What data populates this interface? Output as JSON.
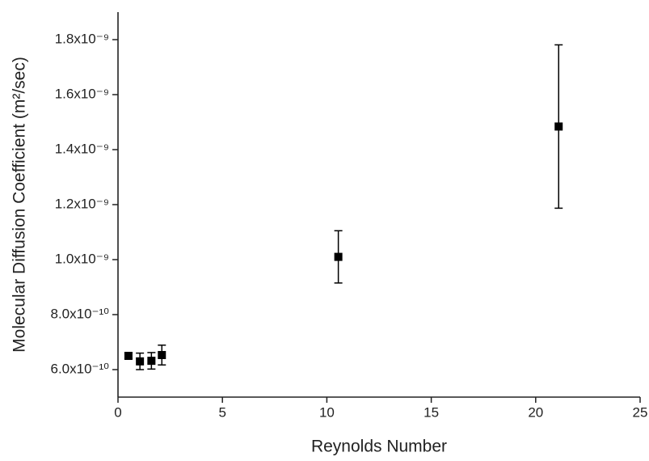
{
  "chart_data": {
    "type": "scatter",
    "x_label": "Reynolds Number",
    "y_label": "Molecular Diffusion Coefficient (m²/sec)",
    "xlim": [
      0,
      25
    ],
    "xticks": [
      0,
      5,
      10,
      15,
      20,
      25
    ],
    "ylim": [
      5e-10,
      1.9e-09
    ],
    "yticks": [
      {
        "value": 6e-10,
        "label": "6.0x10⁻¹⁰"
      },
      {
        "value": 8e-10,
        "label": "8.0x10⁻¹⁰"
      },
      {
        "value": 1e-09,
        "label": "1.0x10⁻⁹"
      },
      {
        "value": 1.2e-09,
        "label": "1.2x10⁻⁹"
      },
      {
        "value": 1.4e-09,
        "label": "1.4x10⁻⁹"
      },
      {
        "value": 1.6e-09,
        "label": "1.6x10⁻⁹"
      },
      {
        "value": 1.8e-09,
        "label": "1.8x10⁻⁹"
      }
    ],
    "grid": false,
    "series": [
      {
        "color": "#000000",
        "x": [
          0.5,
          1.05,
          1.6,
          2.1,
          10.55,
          21.1
        ],
        "values": [
          6.5e-10,
          6.3e-10,
          6.32e-10,
          6.53e-10,
          1.01e-09,
          1.484e-09
        ],
        "errors": [
          1e-11,
          3e-11,
          3e-11,
          3.6e-11,
          9.5e-11,
          2.97e-10
        ]
      }
    ]
  }
}
